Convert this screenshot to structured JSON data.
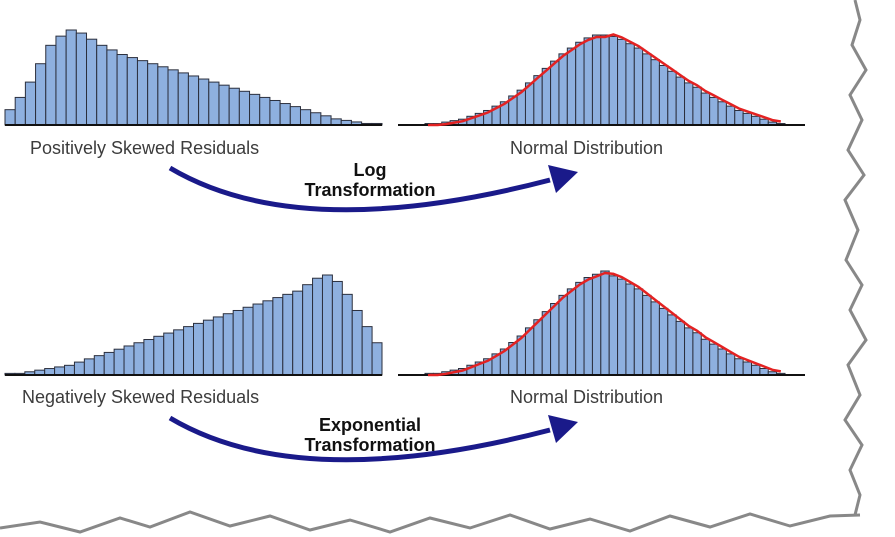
{
  "colors": {
    "bar_fill": "#8eb0df",
    "bar_stroke": "#2b2f3d",
    "curve": "#e32222",
    "arrow": "#1a1a8a",
    "axis": "#111111"
  },
  "panels": [
    {
      "id": "pos-skew",
      "label": "Positively Skewed Residuals",
      "values": [
        10,
        18,
        28,
        40,
        52,
        58,
        62,
        60,
        56,
        52,
        49,
        46,
        44,
        42,
        40,
        38,
        36,
        34,
        32,
        30,
        28,
        26,
        24,
        22,
        20,
        18,
        16,
        14,
        12,
        10,
        8,
        6,
        4,
        3,
        2,
        1,
        1
      ]
    },
    {
      "id": "normal-top",
      "label": "Normal Distribution",
      "curve": true,
      "values": [
        1,
        1,
        2,
        3,
        4,
        6,
        8,
        10,
        13,
        16,
        20,
        24,
        29,
        34,
        39,
        44,
        49,
        53,
        57,
        60,
        62,
        62,
        61,
        59,
        56,
        53,
        49,
        45,
        41,
        37,
        33,
        29,
        26,
        22,
        19,
        16,
        13,
        10,
        8,
        6,
        4,
        2,
        1
      ]
    },
    {
      "id": "neg-skew",
      "label": "Negatively Skewed Residuals",
      "values": [
        1,
        1,
        2,
        3,
        4,
        5,
        6,
        8,
        10,
        12,
        14,
        16,
        18,
        20,
        22,
        24,
        26,
        28,
        30,
        32,
        34,
        36,
        38,
        40,
        42,
        44,
        46,
        48,
        50,
        52,
        56,
        60,
        62,
        58,
        50,
        40,
        30,
        20
      ]
    },
    {
      "id": "normal-bottom",
      "label": "Normal Distribution",
      "curve": true,
      "values": [
        1,
        1,
        2,
        3,
        4,
        6,
        8,
        10,
        13,
        16,
        20,
        24,
        29,
        34,
        39,
        44,
        49,
        53,
        57,
        60,
        62,
        64,
        61,
        59,
        56,
        53,
        49,
        45,
        41,
        37,
        33,
        29,
        26,
        22,
        19,
        16,
        13,
        10,
        8,
        6,
        4,
        2,
        1
      ]
    }
  ],
  "transforms": [
    {
      "id": "log",
      "line1": "Log",
      "line2": "Transformation"
    },
    {
      "id": "exp",
      "line1": "Exponential",
      "line2": "Transformation"
    }
  ]
}
